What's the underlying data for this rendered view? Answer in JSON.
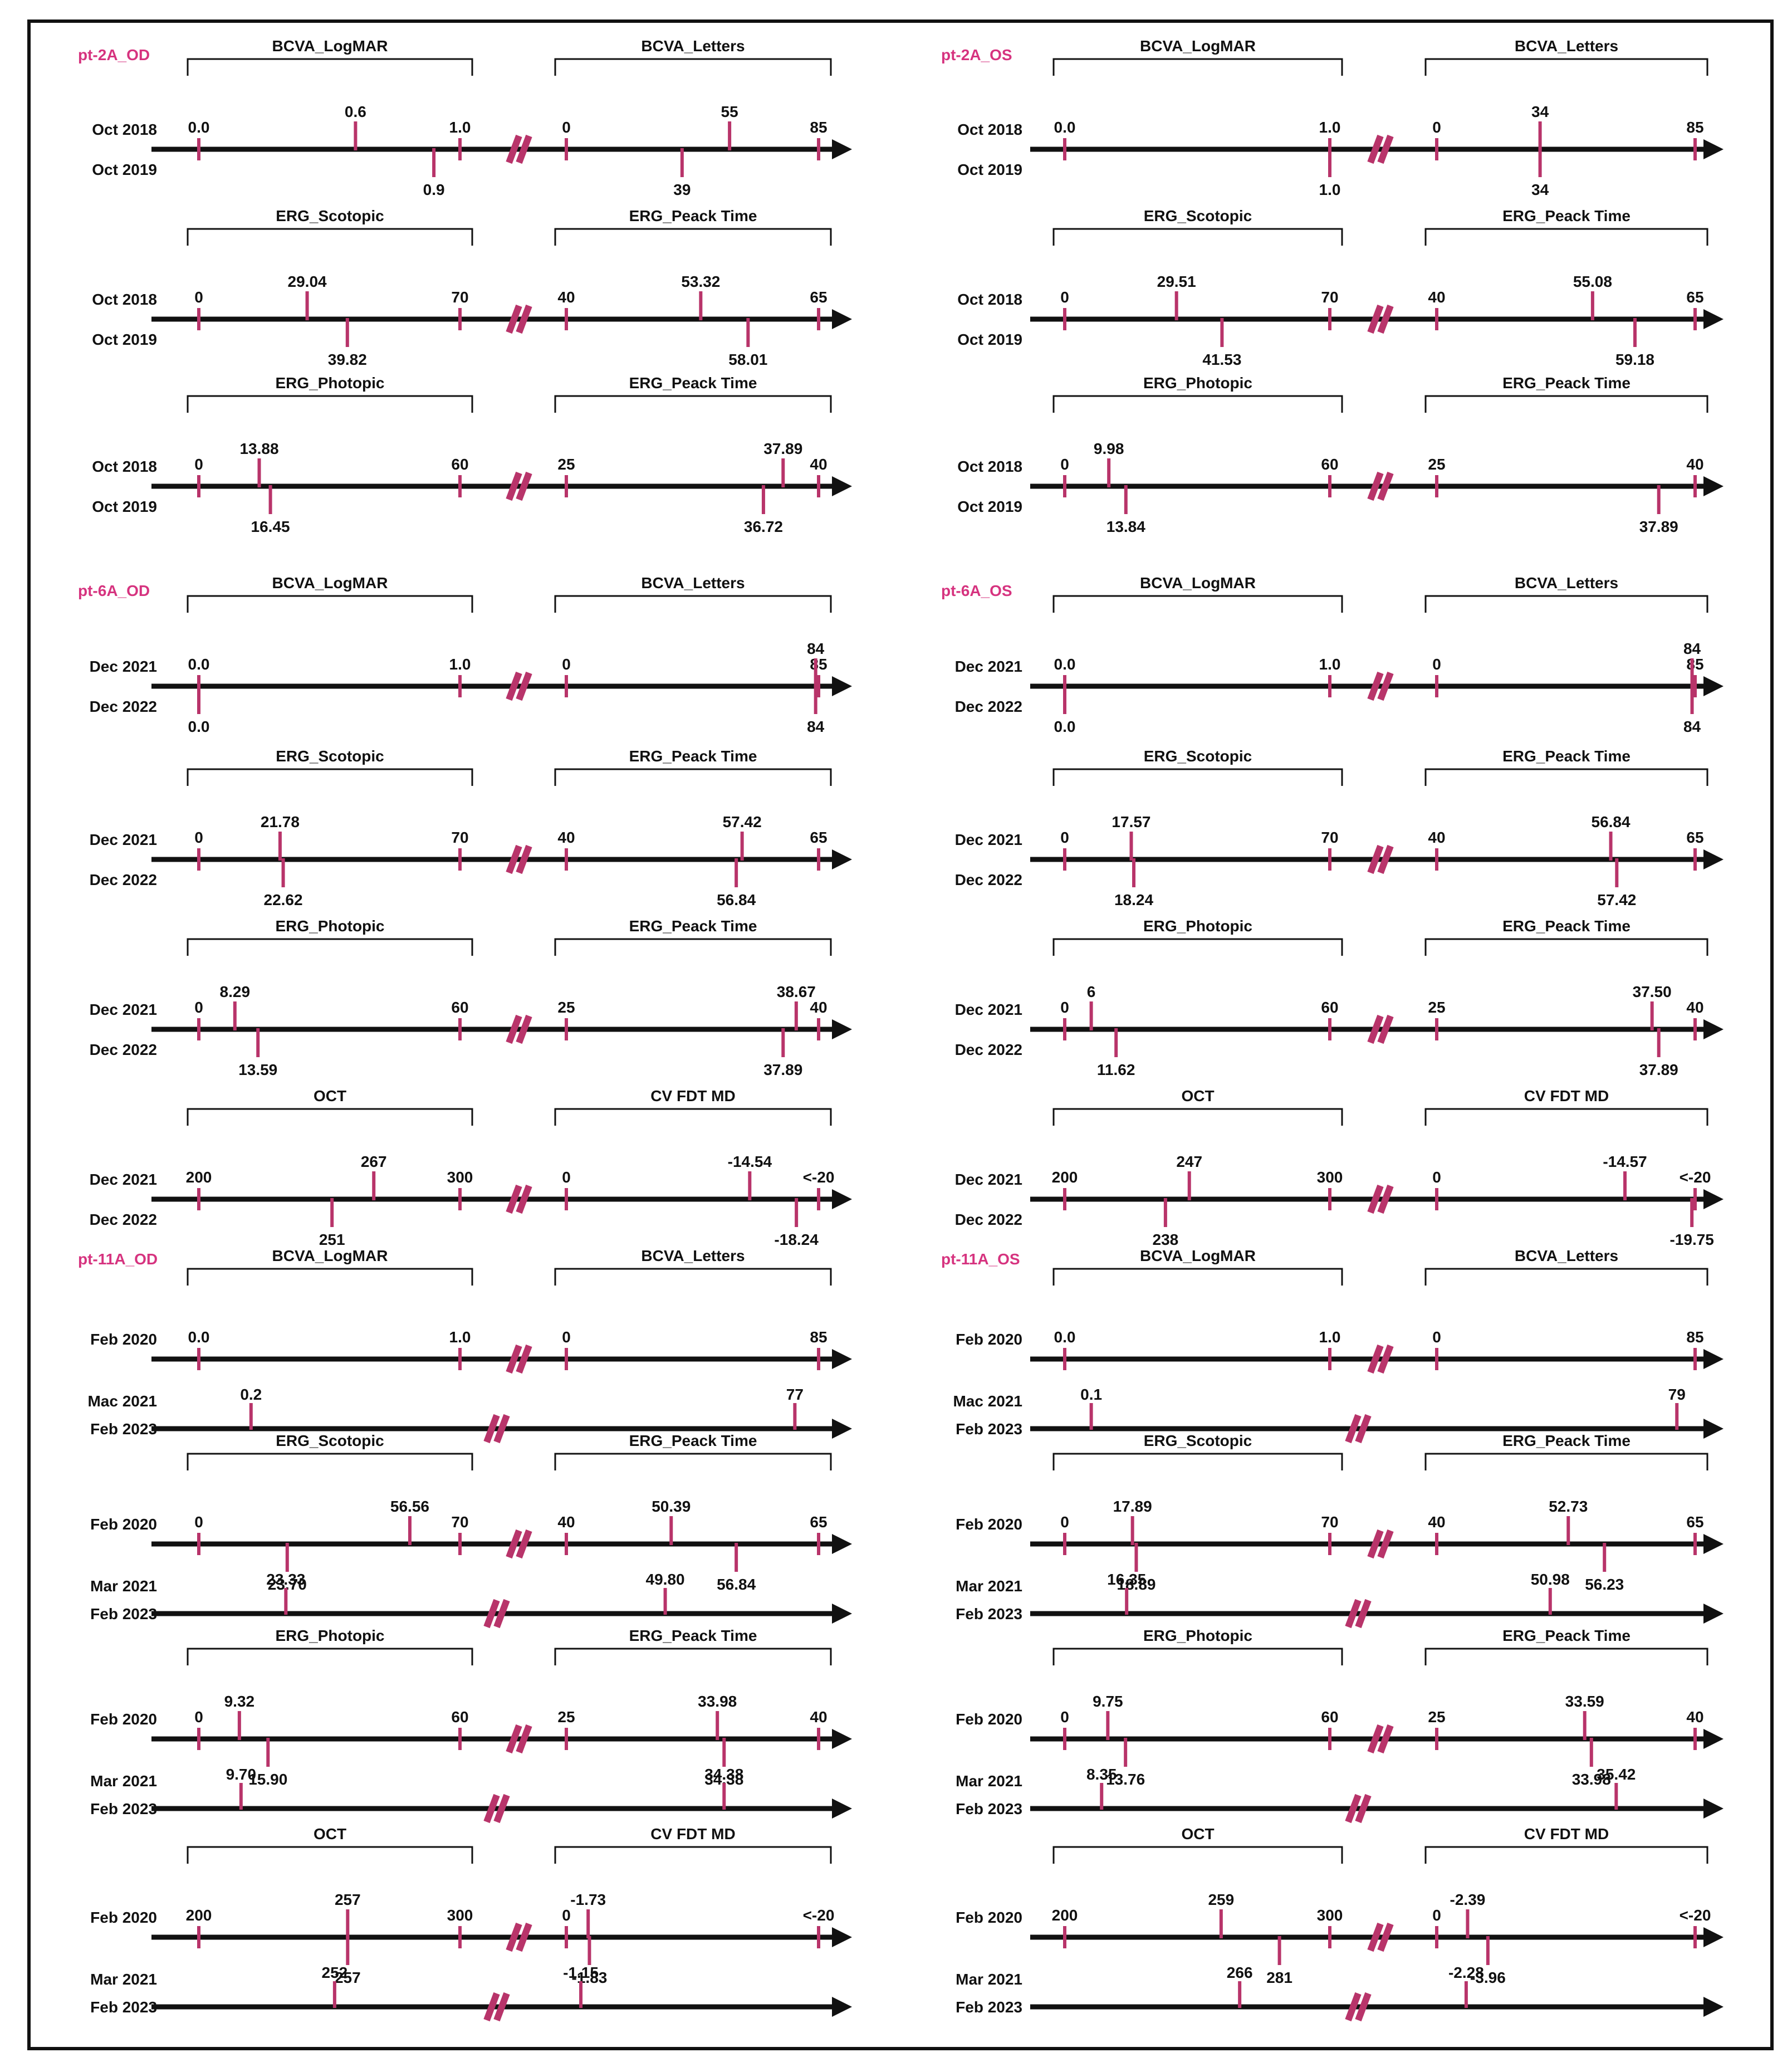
{
  "colors": {
    "ink": "#111111",
    "tick": "#b8346a",
    "label": "#d6337f",
    "marker": "#8fe0d0",
    "frame": "#111111"
  },
  "chart_data": [
    {
      "type": "timeline-scales",
      "patient": "pt-2A_OD",
      "panels": [
        {
          "date_top": "Oct 2018",
          "date_bottom": "Oct 2019",
          "left": {
            "label": "BCVA_LogMAR",
            "range": [
              0,
              1
            ],
            "ticks": [
              "0.0",
              "1.0"
            ],
            "first": "0.6",
            "last": "0.9"
          },
          "right": {
            "label": "BCVA_Letters",
            "range": [
              0,
              85
            ],
            "ticks": [
              "0",
              "85"
            ],
            "first": "55",
            "last": "39"
          }
        },
        {
          "date_top": "Oct 2018",
          "date_bottom": "Oct 2019",
          "left": {
            "label": "ERG_Scotopic",
            "range": [
              0,
              70
            ],
            "ticks": [
              "0",
              "70"
            ],
            "first": "29.04",
            "last": "39.82"
          },
          "right": {
            "label": "ERG_Peack Time",
            "range": [
              40,
              65
            ],
            "ticks": [
              "40",
              "65"
            ],
            "first": "53.32",
            "last": "58.01"
          }
        },
        {
          "date_top": "Oct 2018",
          "date_bottom": "Oct 2019",
          "left": {
            "label": "ERG_Photopic",
            "range": [
              0,
              60
            ],
            "ticks": [
              "0",
              "60"
            ],
            "first": "13.88",
            "last": "16.45"
          },
          "right": {
            "label": "ERG_Peack Time",
            "range": [
              25,
              40
            ],
            "ticks": [
              "25",
              "40"
            ],
            "first": "37.89",
            "last": "36.72"
          }
        }
      ]
    },
    {
      "type": "timeline-scales",
      "patient": "pt-2A_OS",
      "panels": [
        {
          "date_top": "Oct 2018",
          "date_bottom": "Oct 2019",
          "left": {
            "label": "BCVA_LogMAR",
            "range": [
              0,
              1
            ],
            "ticks": [
              "0.0",
              "1.0"
            ],
            "first": "1.0",
            "last": "1.0"
          },
          "right": {
            "label": "BCVA_Letters",
            "range": [
              0,
              85
            ],
            "ticks": [
              "0",
              "85"
            ],
            "first": "34",
            "last": "34"
          }
        },
        {
          "date_top": "Oct 2018",
          "date_bottom": "Oct 2019",
          "left": {
            "label": "ERG_Scotopic",
            "range": [
              0,
              70
            ],
            "ticks": [
              "0",
              "70"
            ],
            "first": "29.51",
            "last": "41.53"
          },
          "right": {
            "label": "ERG_Peack Time",
            "range": [
              40,
              65
            ],
            "ticks": [
              "40",
              "65"
            ],
            "first": "55.08",
            "last": "59.18"
          }
        },
        {
          "date_top": "Oct 2018",
          "date_bottom": "Oct 2019",
          "left": {
            "label": "ERG_Photopic",
            "range": [
              0,
              60
            ],
            "ticks": [
              "0",
              "60"
            ],
            "first": "9.98",
            "last": "13.84"
          },
          "right": {
            "label": "ERG_Peack Time",
            "range": [
              25,
              40
            ],
            "ticks": [
              "25",
              "40"
            ],
            "first": "40",
            "last": "37.89"
          }
        }
      ]
    },
    {
      "type": "timeline-scales",
      "patient": "pt-6A_OD",
      "panels": [
        {
          "date_top": "Dec 2021",
          "date_bottom": "Dec 2022",
          "left": {
            "label": "BCVA_LogMAR",
            "range": [
              0,
              1
            ],
            "ticks": [
              "0.0",
              "1.0"
            ],
            "first": "0.0",
            "last": "0.0"
          },
          "right": {
            "label": "BCVA_Letters",
            "range": [
              0,
              85
            ],
            "ticks": [
              "0",
              "85"
            ],
            "first": "84",
            "last": "84"
          }
        },
        {
          "date_top": "Dec 2021",
          "date_bottom": "Dec 2022",
          "left": {
            "label": "ERG_Scotopic",
            "range": [
              0,
              70
            ],
            "ticks": [
              "0",
              "70"
            ],
            "first": "21.78",
            "last": "22.62"
          },
          "right": {
            "label": "ERG_Peack Time",
            "range": [
              40,
              65
            ],
            "ticks": [
              "40",
              "65"
            ],
            "first": "57.42",
            "last": "56.84"
          }
        },
        {
          "date_top": "Dec 2021",
          "date_bottom": "Dec 2022",
          "left": {
            "label": "ERG_Photopic",
            "range": [
              0,
              60
            ],
            "ticks": [
              "0",
              "60"
            ],
            "first": "8.29",
            "last": "13.59"
          },
          "right": {
            "label": "ERG_Peack Time",
            "range": [
              25,
              40
            ],
            "ticks": [
              "25",
              "40"
            ],
            "first": "38.67",
            "last": "37.89"
          }
        },
        {
          "date_top": "Dec 2021",
          "date_bottom": "Dec 2022",
          "left": {
            "label": "OCT",
            "range": [
              200,
              300
            ],
            "ticks": [
              "200",
              "300"
            ],
            "first": "267",
            "last": "251"
          },
          "right": {
            "label": "CV FDT MD",
            "range": [
              0,
              -20
            ],
            "ticks": [
              "0",
              "<-20"
            ],
            "first": "-14.54",
            "last": "-18.24"
          }
        }
      ]
    },
    {
      "type": "timeline-scales",
      "patient": "pt-6A_OS",
      "panels": [
        {
          "date_top": "Dec 2021",
          "date_bottom": "Dec 2022",
          "left": {
            "label": "BCVA_LogMAR",
            "range": [
              0,
              1
            ],
            "ticks": [
              "0.0",
              "1.0"
            ],
            "first": "0.0",
            "last": "0.0"
          },
          "right": {
            "label": "BCVA_Letters",
            "range": [
              0,
              85
            ],
            "ticks": [
              "0",
              "85"
            ],
            "first": "84",
            "last": "84"
          }
        },
        {
          "date_top": "Dec 2021",
          "date_bottom": "Dec 2022",
          "left": {
            "label": "ERG_Scotopic",
            "range": [
              0,
              70
            ],
            "ticks": [
              "0",
              "70"
            ],
            "first": "17.57",
            "last": "18.24"
          },
          "right": {
            "label": "ERG_Peack Time",
            "range": [
              40,
              65
            ],
            "ticks": [
              "40",
              "65"
            ],
            "first": "56.84",
            "last": "57.42"
          }
        },
        {
          "date_top": "Dec 2021",
          "date_bottom": "Dec 2022",
          "left": {
            "label": "ERG_Photopic",
            "range": [
              0,
              60
            ],
            "ticks": [
              "0",
              "60"
            ],
            "first": "6",
            "last": "11.62"
          },
          "right": {
            "label": "ERG_Peack Time",
            "range": [
              25,
              40
            ],
            "ticks": [
              "25",
              "40"
            ],
            "first": "37.50",
            "last": "37.89"
          }
        },
        {
          "date_top": "Dec 2021",
          "date_bottom": "Dec 2022",
          "left": {
            "label": "OCT",
            "range": [
              200,
              300
            ],
            "ticks": [
              "200",
              "300"
            ],
            "first": "247",
            "last": "238"
          },
          "right": {
            "label": "CV FDT MD",
            "range": [
              0,
              -20
            ],
            "ticks": [
              "0",
              "<-20"
            ],
            "first": "-14.57",
            "last": "-19.75"
          }
        }
      ]
    },
    {
      "type": "timeline-scales",
      "patient": "pt-11A_OD",
      "panels": [
        {
          "date_top": "Feb 2020",
          "date_mid": "Mac 2021",
          "date_third": "Feb 2023",
          "left": {
            "label": "BCVA_LogMAR",
            "range": [
              0,
              1
            ],
            "ticks": [
              "0.0",
              "1.0"
            ],
            "first": "0.0",
            "third": "0.2"
          },
          "right": {
            "label": "BCVA_Letters",
            "range": [
              0,
              85
            ],
            "ticks": [
              "0",
              "85"
            ],
            "first": "85",
            "third": "77"
          }
        },
        {
          "date_top": "Feb 2020",
          "date_mid": "Mar 2021",
          "date_third": "Feb 2023",
          "left": {
            "label": "ERG_Scotopic",
            "range": [
              0,
              70
            ],
            "ticks": [
              "0",
              "70"
            ],
            "first": "56.56",
            "last": "23.70",
            "third": "23.33"
          },
          "right": {
            "label": "ERG_Peack Time",
            "range": [
              40,
              65
            ],
            "ticks": [
              "40",
              "65"
            ],
            "first": "50.39",
            "last": "56.84",
            "third": "49.80"
          }
        },
        {
          "date_top": "Feb 2020",
          "date_mid": "Mar 2021",
          "date_third": "Feb 2023",
          "left": {
            "label": "ERG_Photopic",
            "range": [
              0,
              60
            ],
            "ticks": [
              "0",
              "60"
            ],
            "first": "9.32",
            "last": "15.90",
            "third": "9.70"
          },
          "right": {
            "label": "ERG_Peack Time",
            "range": [
              25,
              40
            ],
            "ticks": [
              "25",
              "40"
            ],
            "first": "33.98",
            "last": "34.38",
            "third": "34.38"
          }
        },
        {
          "date_top": "Feb 2020",
          "date_mid": "Mar 2021",
          "date_third": "Feb 2023",
          "left": {
            "label": "OCT",
            "range": [
              200,
              300
            ],
            "ticks": [
              "200",
              "300"
            ],
            "first": "257",
            "last": "257",
            "third": "252"
          },
          "right": {
            "label": "CV FDT MD",
            "range": [
              0,
              -20
            ],
            "ticks": [
              "0",
              "<-20"
            ],
            "first": "-1.73",
            "last": "-1.83",
            "third": "-1.15"
          }
        }
      ]
    },
    {
      "type": "timeline-scales",
      "patient": "pt-11A_OS",
      "panels": [
        {
          "date_top": "Feb 2020",
          "date_mid": "Mac 2021",
          "date_third": "Feb 2023",
          "left": {
            "label": "BCVA_LogMAR",
            "range": [
              0,
              1
            ],
            "ticks": [
              "0.0",
              "1.0"
            ],
            "first": "0.0",
            "third": "0.1"
          },
          "right": {
            "label": "BCVA_Letters",
            "range": [
              0,
              85
            ],
            "ticks": [
              "0",
              "85"
            ],
            "first": "85",
            "third": "79"
          }
        },
        {
          "date_top": "Feb 2020",
          "date_mid": "Mar 2021",
          "date_third": "Feb 2023",
          "left": {
            "label": "ERG_Scotopic",
            "range": [
              0,
              70
            ],
            "ticks": [
              "0",
              "70"
            ],
            "first": "17.89",
            "last": "18.89",
            "third": "16.35"
          },
          "right": {
            "label": "ERG_Peack Time",
            "range": [
              40,
              65
            ],
            "ticks": [
              "40",
              "65"
            ],
            "first": "52.73",
            "last": "56.23",
            "third": "50.98"
          }
        },
        {
          "date_top": "Feb 2020",
          "date_mid": "Mar 2021",
          "date_third": "Feb 2023",
          "left": {
            "label": "ERG_Photopic",
            "range": [
              0,
              60
            ],
            "ticks": [
              "0",
              "60"
            ],
            "first": "9.75",
            "last": "13.76",
            "third": "8.35"
          },
          "right": {
            "label": "ERG_Peack Time",
            "range": [
              25,
              40
            ],
            "ticks": [
              "25",
              "40"
            ],
            "first": "33.59",
            "last": "33.98",
            "third": "35.42"
          }
        },
        {
          "date_top": "Feb 2020",
          "date_mid": "Mar 2021",
          "date_third": "Feb 2023",
          "left": {
            "label": "OCT",
            "range": [
              200,
              300
            ],
            "ticks": [
              "200",
              "300"
            ],
            "first": "259",
            "last": "281",
            "third": "266"
          },
          "right": {
            "label": "CV FDT MD",
            "range": [
              0,
              -20
            ],
            "ticks": [
              "0",
              "<-20"
            ],
            "first": "-2.39",
            "last": "-3.96",
            "third": "-2.28"
          }
        }
      ]
    }
  ]
}
